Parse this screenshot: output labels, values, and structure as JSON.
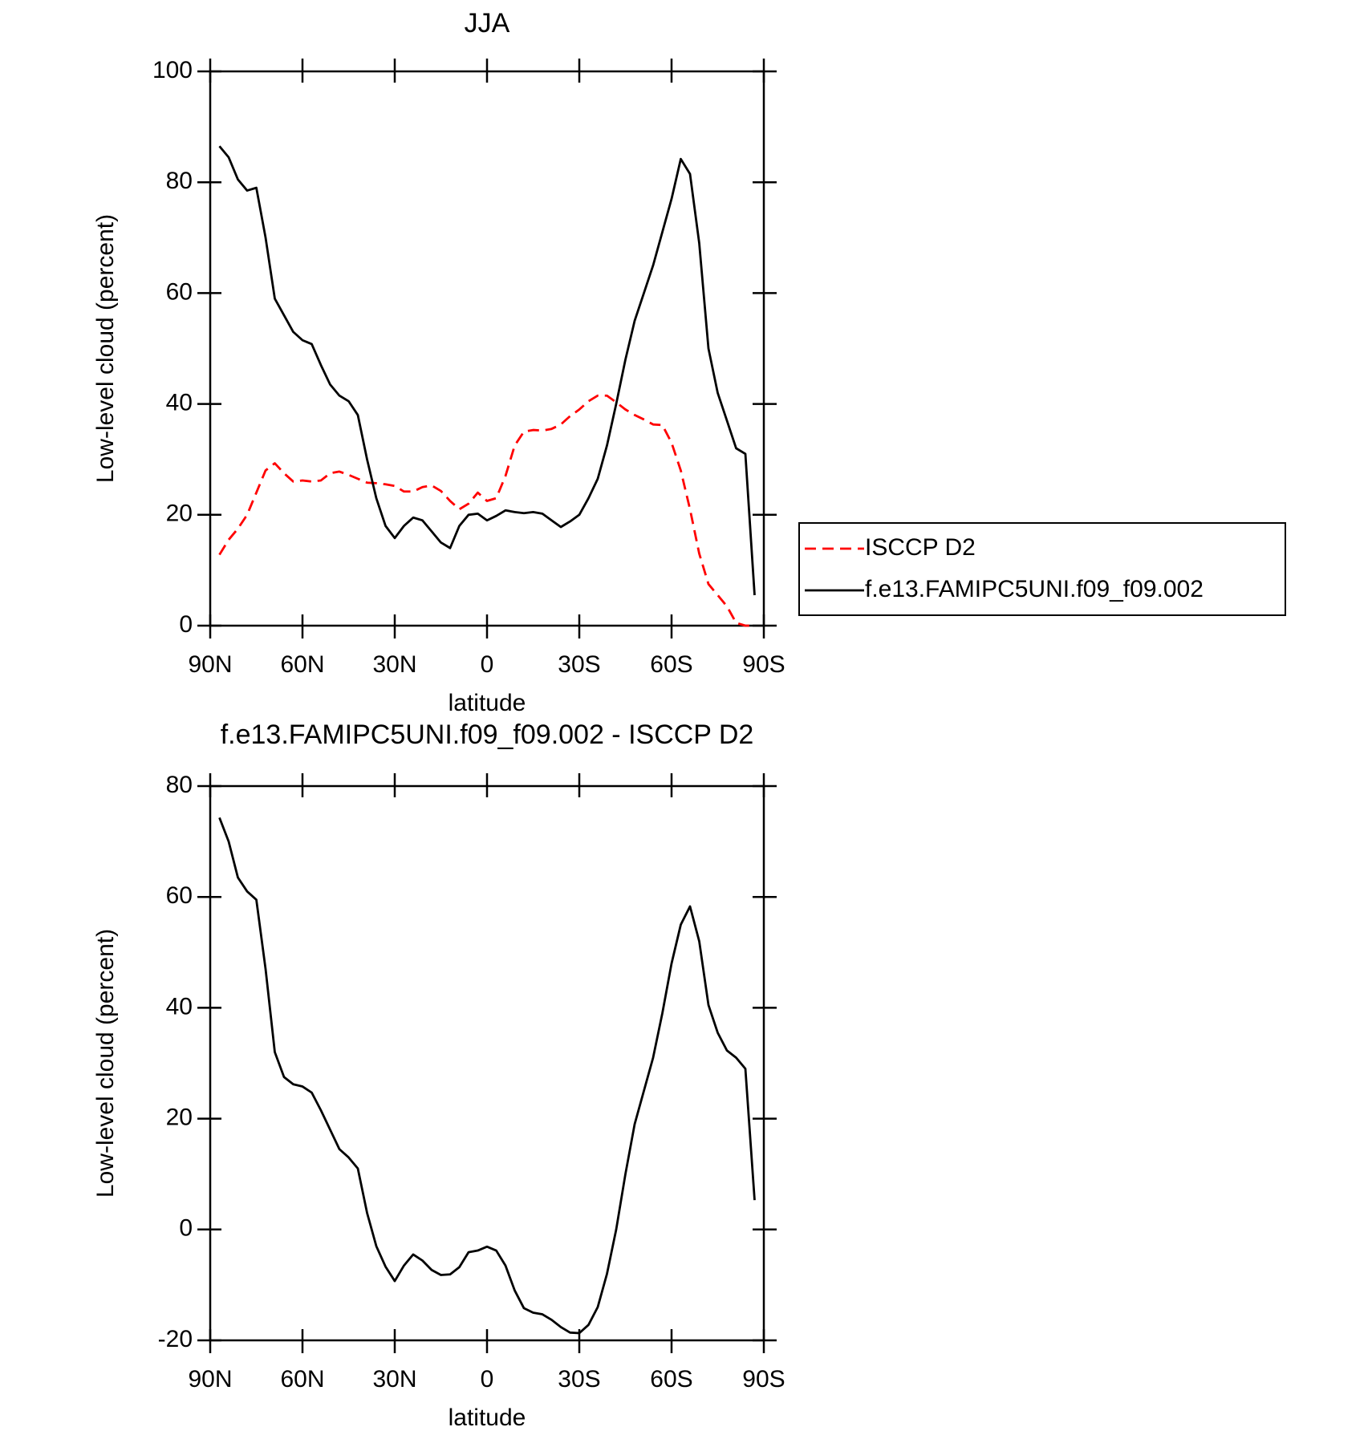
{
  "chart_data": [
    {
      "type": "line",
      "title": "JJA",
      "xlabel": "latitude",
      "ylabel": "Low-level cloud (percent)",
      "x": [
        87,
        84,
        81,
        78,
        75,
        72,
        69,
        66,
        63,
        60,
        57,
        54,
        51,
        48,
        45,
        42,
        39,
        36,
        33,
        30,
        27,
        24,
        21,
        18,
        15,
        12,
        9,
        6,
        3,
        0,
        -3,
        -6,
        -9,
        -12,
        -15,
        -18,
        -21,
        -24,
        -27,
        -30,
        -33,
        -36,
        -39,
        -42,
        -45,
        -48,
        -51,
        -54,
        -57,
        -60,
        -63,
        -66,
        -69,
        -72,
        -75,
        -78,
        -81,
        -84,
        -87
      ],
      "series": [
        {
          "name": "ISCCP D2",
          "color": "#ff0000",
          "dash": true,
          "values": [
            12.8,
            15.5,
            17.5,
            20,
            24,
            28,
            29.3,
            27.5,
            26,
            26.2,
            26,
            26.2,
            27.5,
            27.8,
            27.2,
            26.5,
            25.8,
            25.7,
            25.5,
            25.2,
            24.2,
            24.2,
            25,
            25.3,
            24.3,
            22.5,
            21,
            22,
            24,
            22.5,
            23,
            27,
            32.5,
            35,
            35.3,
            35.2,
            35.5,
            36.3,
            37.8,
            39,
            40.5,
            41.5,
            41.5,
            40.3,
            39,
            38,
            37.2,
            36.3,
            36.2,
            33,
            28,
            21,
            13,
            7.5,
            5.5,
            3.5,
            0.5,
            0,
            0
          ]
        },
        {
          "name": "f.e13.FAMIPC5UNI.f09_f09.002",
          "color": "#000000",
          "dash": false,
          "values": [
            86.5,
            84.5,
            80.5,
            78.5,
            79,
            70,
            59,
            56,
            53,
            51.5,
            50.8,
            47,
            43.5,
            41.5,
            40.5,
            38,
            30,
            23,
            18,
            15.8,
            18,
            19.5,
            19,
            17,
            15,
            14,
            18,
            20,
            20.2,
            19,
            19.8,
            20.8,
            20.5,
            20.3,
            20.5,
            20.2,
            19,
            17.8,
            18.8,
            20,
            23,
            26.5,
            32.5,
            40,
            48,
            55,
            60,
            65,
            71,
            77,
            84.2,
            81.5,
            69,
            50,
            42,
            37,
            32,
            31,
            5.5
          ]
        }
      ],
      "xlim": [
        90,
        -90
      ],
      "xticks": [
        {
          "value": 90,
          "label": "90N"
        },
        {
          "value": 60,
          "label": "60N"
        },
        {
          "value": 30,
          "label": "30N"
        },
        0,
        {
          "value": -30,
          "label": "30S"
        },
        {
          "value": -60,
          "label": "60S"
        },
        {
          "value": -90,
          "label": "90S"
        }
      ],
      "ylim": [
        0,
        100
      ],
      "yticks": [
        0,
        20,
        40,
        60,
        80,
        100
      ],
      "legend": "right"
    },
    {
      "type": "line",
      "title": "f.e13.FAMIPC5UNI.f09_f09.002 - ISCCP D2",
      "xlabel": "latitude",
      "ylabel": "Low-level cloud (percent)",
      "x": [
        87,
        84,
        81,
        78,
        75,
        72,
        69,
        66,
        63,
        60,
        57,
        54,
        51,
        48,
        45,
        42,
        39,
        36,
        33,
        30,
        27,
        24,
        21,
        18,
        15,
        12,
        9,
        6,
        3,
        0,
        -3,
        -6,
        -9,
        -12,
        -15,
        -18,
        -21,
        -24,
        -27,
        -30,
        -33,
        -36,
        -39,
        -42,
        -45,
        -48,
        -51,
        -54,
        -57,
        -60,
        -63,
        -66,
        -69,
        -72,
        -75,
        -78,
        -81,
        -84,
        -87
      ],
      "series": [
        {
          "color": "#000000",
          "dash": false,
          "values": [
            74.3,
            70,
            63.5,
            61,
            59.5,
            47,
            32,
            27.5,
            26.2,
            25.8,
            24.7,
            21.5,
            18,
            14.5,
            13,
            11,
            3,
            -3,
            -6.7,
            -9.3,
            -6.5,
            -4.5,
            -5.6,
            -7.3,
            -8.2,
            -8.1,
            -6.8,
            -4.1,
            -3.8,
            -3.1,
            -3.8,
            -6.5,
            -11,
            -14.2,
            -15,
            -15.3,
            -16.3,
            -17.6,
            -18.6,
            -18.7,
            -17.2,
            -14,
            -8,
            0,
            10,
            19,
            25,
            31,
            39,
            48,
            55,
            58.3,
            52,
            40.5,
            35.5,
            32.3,
            31,
            29,
            5.3
          ]
        }
      ],
      "xlim": [
        90,
        -90
      ],
      "xticks": [
        {
          "value": 90,
          "label": "90N"
        },
        {
          "value": 60,
          "label": "60N"
        },
        {
          "value": 30,
          "label": "30N"
        },
        0,
        {
          "value": -30,
          "label": "30S"
        },
        {
          "value": -60,
          "label": "60S"
        },
        {
          "value": -90,
          "label": "90S"
        }
      ],
      "ylim": [
        -20,
        80
      ],
      "yticks": [
        -20,
        0,
        20,
        40,
        60,
        80
      ]
    }
  ]
}
